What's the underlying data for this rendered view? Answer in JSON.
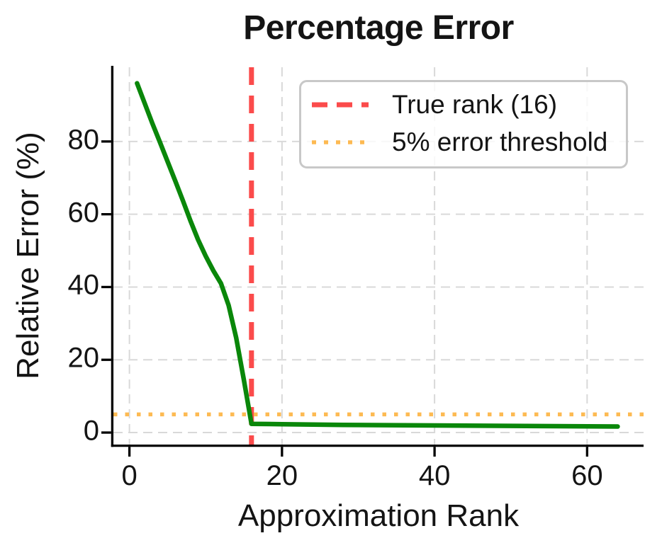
{
  "figure": {
    "title": "Percentage Error",
    "x_label": "Approximation Rank",
    "y_label": "Relative Error (%)"
  },
  "legend": {
    "position": "upper right",
    "items": [
      {
        "label": "True rank (16)",
        "swatch_icon": "red-dashed-line-icon"
      },
      {
        "label": "5% error threshold",
        "swatch_icon": "orange-dotted-line-icon"
      }
    ]
  },
  "colors": {
    "series_green": "#0a870a",
    "true_rank_red": "#fb4b4b",
    "threshold_orange": "#fdba52",
    "grid": "#d9d9d9",
    "spine": "#000000",
    "text": "#141414",
    "legend_border": "#c8c8c8"
  },
  "chart_data": {
    "type": "line",
    "title": "Percentage Error",
    "xlabel": "Approximation Rank",
    "ylabel": "Relative Error (%)",
    "xlim": [
      -2.1,
      67.4
    ],
    "ylim": [
      -3.3,
      100.4
    ],
    "x_ticks": [
      0,
      20,
      40,
      60
    ],
    "y_ticks": [
      0,
      20,
      40,
      60,
      80
    ],
    "grid": true,
    "grid_style": "dashed",
    "legend_position": "upper right",
    "series": [
      {
        "name": "relative-error",
        "color": "#0a870a",
        "style": "solid",
        "line_width": 6.5,
        "x": [
          1,
          2,
          3,
          4,
          5,
          6,
          7,
          8,
          9,
          10,
          11,
          12,
          13,
          14,
          15,
          16,
          20,
          24,
          28,
          32,
          36,
          40,
          44,
          48,
          52,
          56,
          60,
          64
        ],
        "y": [
          96,
          90.5,
          85,
          79.8,
          74.5,
          69.2,
          63.8,
          58.2,
          53,
          48.5,
          44.5,
          41,
          35,
          26,
          14.5,
          2.4,
          2.3,
          2.2,
          2.1,
          2.05,
          2.0,
          1.95,
          1.9,
          1.85,
          1.8,
          1.75,
          1.7,
          1.65
        ]
      }
    ],
    "reference_lines": [
      {
        "name": "True rank (16)",
        "orientation": "vertical",
        "value": 16,
        "color": "#fb4b4b",
        "style": "dashed",
        "line_width": 7,
        "dash": "25 15"
      },
      {
        "name": "5% error threshold",
        "orientation": "horizontal",
        "value": 5,
        "color": "#fdba52",
        "style": "dotted",
        "line_width": 5.5,
        "dash": "5.5 11"
      }
    ]
  }
}
